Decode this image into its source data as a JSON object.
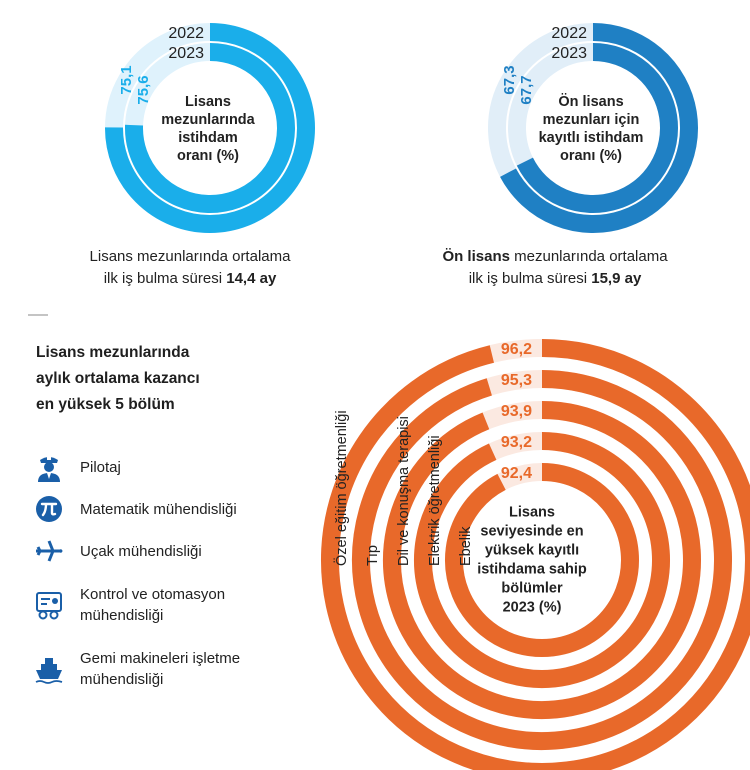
{
  "chart_data": [
    {
      "type": "donut",
      "title": "Lisans mezunlarında istihdam oranı (%)",
      "center_lines": [
        "Lisans",
        "mezunlarında",
        "istihdam",
        "oranı (%)"
      ],
      "max": 100,
      "series": [
        {
          "name": "2022",
          "value": 75.1,
          "label": "75,1"
        },
        {
          "name": "2023",
          "value": 75.6,
          "label": "75,6"
        }
      ],
      "color": "#1aaeea",
      "track_color": "#dff2fc"
    },
    {
      "type": "donut",
      "title": "Ön lisans mezunları için kayıtlı istihdam oranı (%)",
      "center_lines": [
        "Ön lisans",
        "mezunları için",
        "kayıtlı istihdam",
        "oranı (%)"
      ],
      "max": 100,
      "series": [
        {
          "name": "2022",
          "value": 67.3,
          "label": "67,3"
        },
        {
          "name": "2023",
          "value": 67.7,
          "label": "67,7"
        }
      ],
      "color": "#1f80c4",
      "track_color": "#e1eef8"
    },
    {
      "type": "radial-bar",
      "title": "Lisans seviyesinde en yüksek kayıtlı istihdama sahip bölümler 2023 (%)",
      "center_lines": [
        "Lisans",
        "seviyesinde en",
        "yüksek kayıtlı",
        "istihdama sahip",
        "bölümler",
        "2023 (%)"
      ],
      "max": 100,
      "categories": [
        "Özel eğitim öğretmenliği",
        "Tıp",
        "Dil ve konuşma terapisi",
        "Elektrik öğretmenliği",
        "Ebelik"
      ],
      "values": [
        96.2,
        95.3,
        93.9,
        93.2,
        92.4
      ],
      "labels": [
        "96,2",
        "95,3",
        "93,9",
        "93,2",
        "92,4"
      ],
      "color": "#e8692a",
      "track_color": "#fbe9e1"
    }
  ],
  "summaries": {
    "lisans": {
      "line1": "Lisans mezunlarında ortalama",
      "line2_prefix": "ilk iş bulma süresi ",
      "line2_value": "14,4 ay"
    },
    "onlisans": {
      "line1_bold": "Ön lisans",
      "line1_rest": " mezunlarında ortalama",
      "line2_prefix": "ilk iş bulma süresi ",
      "line2_value": "15,9 ay"
    }
  },
  "top5": {
    "title_lines": [
      "Lisans mezunlarında",
      "aylık ortalama kazancı",
      "en yüksek 5 bölüm"
    ],
    "items": [
      {
        "icon": "pilot-icon",
        "label": "Pilotaj"
      },
      {
        "icon": "pi-icon",
        "label": "Matematik mühendisliği"
      },
      {
        "icon": "airplane-icon",
        "label": "Uçak mühendisliği"
      },
      {
        "icon": "control-panel-icon",
        "label": "Kontrol ve otomasyon mühendisliği"
      },
      {
        "icon": "ship-icon",
        "label": "Gemi makineleri işletme mühendisliği"
      }
    ],
    "icon_color": "#1a5fa8"
  }
}
